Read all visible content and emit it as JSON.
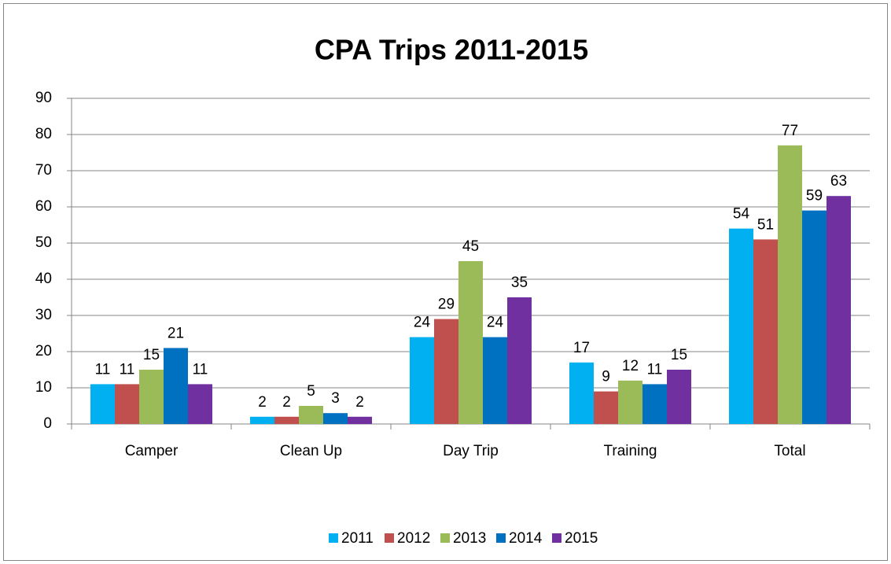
{
  "chart_data": {
    "type": "bar",
    "title": "CPA Trips 2011-2015",
    "categories": [
      "Camper",
      "Clean Up",
      "Day Trip",
      "Training",
      "Total"
    ],
    "series": [
      {
        "name": "2011",
        "color": "#00b0f0",
        "values": [
          11,
          2,
          24,
          17,
          54
        ]
      },
      {
        "name": "2012",
        "color": "#c0504d",
        "values": [
          11,
          2,
          29,
          9,
          51
        ]
      },
      {
        "name": "2013",
        "color": "#9bbb59",
        "values": [
          15,
          5,
          45,
          12,
          77
        ]
      },
      {
        "name": "2014",
        "color": "#0070c0",
        "values": [
          21,
          3,
          24,
          11,
          59
        ]
      },
      {
        "name": "2015",
        "color": "#7030a0",
        "values": [
          11,
          2,
          35,
          15,
          63
        ]
      }
    ],
    "ylim": [
      0,
      90
    ],
    "yticks": [
      0,
      10,
      20,
      30,
      40,
      50,
      60,
      70,
      80,
      90
    ],
    "grid": true,
    "legend": "bottom"
  }
}
